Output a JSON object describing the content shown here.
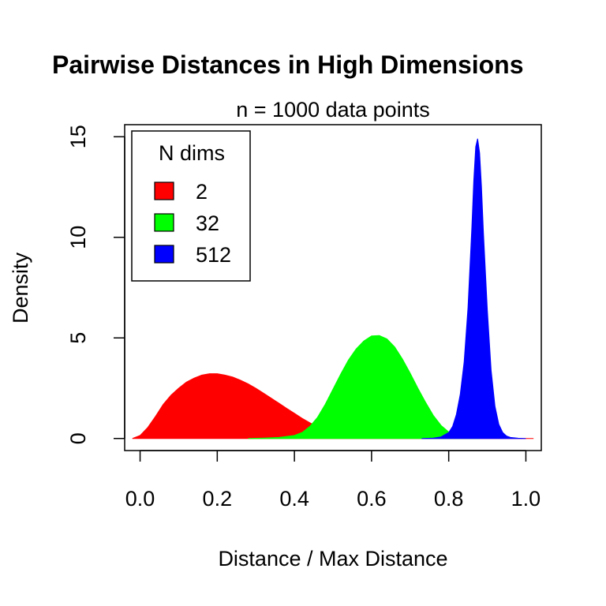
{
  "chart_data": {
    "type": "area",
    "title": "Pairwise Distances in High Dimensions",
    "subtitle": "n = 1000 data points",
    "xlabel": "Distance / Max Distance",
    "ylabel": "Density",
    "xlim": [
      -0.04,
      1.04
    ],
    "ylim": [
      -0.6,
      15.6
    ],
    "x_ticks": [
      0.0,
      0.2,
      0.4,
      0.6,
      0.8,
      1.0
    ],
    "x_tick_labels": [
      "0.0",
      "0.2",
      "0.4",
      "0.6",
      "0.8",
      "1.0"
    ],
    "y_ticks": [
      0,
      5,
      10,
      15
    ],
    "y_tick_labels": [
      "0",
      "5",
      "10",
      "15"
    ],
    "grid": false,
    "legend": {
      "title": "N dims",
      "position": "top-left",
      "entries": [
        "2",
        "32",
        "512"
      ]
    },
    "series": [
      {
        "name": "2",
        "color": "#ff0000",
        "points": [
          [
            -0.02,
            0
          ],
          [
            0.0,
            0.15
          ],
          [
            0.02,
            0.55
          ],
          [
            0.04,
            1.1
          ],
          [
            0.06,
            1.7
          ],
          [
            0.08,
            2.15
          ],
          [
            0.1,
            2.5
          ],
          [
            0.12,
            2.8
          ],
          [
            0.14,
            3.0
          ],
          [
            0.16,
            3.15
          ],
          [
            0.18,
            3.22
          ],
          [
            0.2,
            3.22
          ],
          [
            0.22,
            3.15
          ],
          [
            0.24,
            3.05
          ],
          [
            0.26,
            2.9
          ],
          [
            0.28,
            2.72
          ],
          [
            0.3,
            2.5
          ],
          [
            0.32,
            2.25
          ],
          [
            0.34,
            2.0
          ],
          [
            0.36,
            1.75
          ],
          [
            0.38,
            1.5
          ],
          [
            0.4,
            1.25
          ],
          [
            0.42,
            1.0
          ],
          [
            0.44,
            0.78
          ],
          [
            0.46,
            0.58
          ],
          [
            0.48,
            0.4
          ],
          [
            0.5,
            0.26
          ],
          [
            0.52,
            0.16
          ],
          [
            0.54,
            0.09
          ],
          [
            0.56,
            0.05
          ],
          [
            0.6,
            0.02
          ],
          [
            0.7,
            0.01
          ],
          [
            0.8,
            0.005
          ],
          [
            0.9,
            0.003
          ],
          [
            1.02,
            0
          ]
        ]
      },
      {
        "name": "32",
        "color": "#00ff00",
        "points": [
          [
            0.28,
            0
          ],
          [
            0.32,
            0.02
          ],
          [
            0.36,
            0.05
          ],
          [
            0.4,
            0.15
          ],
          [
            0.42,
            0.3
          ],
          [
            0.44,
            0.6
          ],
          [
            0.46,
            1.05
          ],
          [
            0.48,
            1.7
          ],
          [
            0.5,
            2.45
          ],
          [
            0.52,
            3.2
          ],
          [
            0.54,
            3.9
          ],
          [
            0.56,
            4.45
          ],
          [
            0.58,
            4.85
          ],
          [
            0.6,
            5.1
          ],
          [
            0.62,
            5.12
          ],
          [
            0.64,
            4.95
          ],
          [
            0.66,
            4.55
          ],
          [
            0.68,
            3.95
          ],
          [
            0.7,
            3.25
          ],
          [
            0.72,
            2.5
          ],
          [
            0.74,
            1.8
          ],
          [
            0.76,
            1.15
          ],
          [
            0.78,
            0.65
          ],
          [
            0.8,
            0.32
          ],
          [
            0.82,
            0.13
          ],
          [
            0.84,
            0.04
          ],
          [
            0.86,
            0.01
          ],
          [
            0.88,
            0
          ]
        ]
      },
      {
        "name": "512",
        "color": "#0000ff",
        "points": [
          [
            0.73,
            0
          ],
          [
            0.76,
            0.02
          ],
          [
            0.78,
            0.08
          ],
          [
            0.8,
            0.3
          ],
          [
            0.81,
            0.6
          ],
          [
            0.82,
            1.2
          ],
          [
            0.83,
            2.2
          ],
          [
            0.84,
            3.8
          ],
          [
            0.85,
            6.5
          ],
          [
            0.86,
            10.5
          ],
          [
            0.865,
            12.8
          ],
          [
            0.87,
            14.5
          ],
          [
            0.875,
            14.9
          ],
          [
            0.88,
            14.2
          ],
          [
            0.885,
            12.5
          ],
          [
            0.89,
            10.2
          ],
          [
            0.9,
            6.4
          ],
          [
            0.91,
            3.4
          ],
          [
            0.92,
            1.6
          ],
          [
            0.93,
            0.7
          ],
          [
            0.94,
            0.3
          ],
          [
            0.95,
            0.12
          ],
          [
            0.96,
            0.05
          ],
          [
            0.98,
            0.01
          ],
          [
            1.0,
            0
          ]
        ]
      }
    ]
  }
}
